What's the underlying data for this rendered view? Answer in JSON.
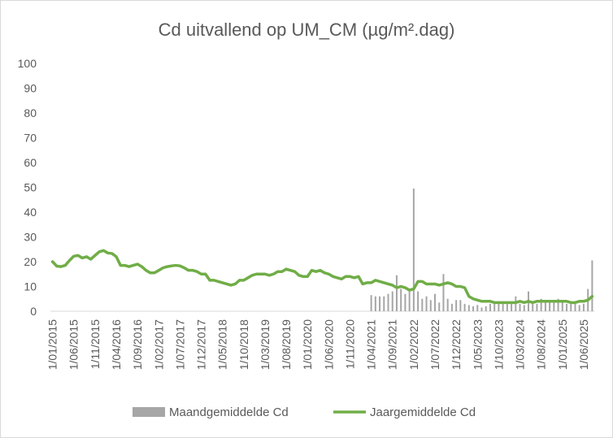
{
  "chart_data": {
    "type": "bar",
    "title": "Cd uitvallend op UM_CM (µg/m².dag)",
    "categories": [
      "1/01/2015",
      null,
      null,
      null,
      null,
      "1/06/2015",
      null,
      null,
      null,
      null,
      "1/11/2015",
      null,
      null,
      null,
      null,
      "1/04/2016",
      null,
      null,
      null,
      null,
      "1/09/2016",
      null,
      null,
      null,
      null,
      "1/02/2017",
      null,
      null,
      null,
      null,
      "1/07/2017",
      null,
      null,
      null,
      null,
      "1/12/2017",
      null,
      null,
      null,
      null,
      "1/05/2018",
      null,
      null,
      null,
      null,
      "1/10/2018",
      null,
      null,
      null,
      null,
      "1/03/2019",
      null,
      null,
      null,
      null,
      "1/08/2019",
      null,
      null,
      null,
      null,
      "1/01/2020",
      null,
      null,
      null,
      null,
      "1/06/2020",
      null,
      null,
      null,
      null,
      "1/11/2020",
      null,
      null,
      null,
      null,
      "1/04/2021",
      null,
      null,
      null,
      null,
      "1/09/2021",
      null,
      null,
      null,
      null,
      "1/02/2022",
      null,
      null,
      null,
      null,
      "1/07/2022",
      null,
      null,
      null,
      null,
      "1/12/2022",
      null,
      null,
      null,
      null,
      "1/05/2023",
      null,
      null,
      null,
      null,
      "1/10/2023",
      null,
      null,
      null,
      null,
      "1/03/2024",
      null,
      null,
      null,
      null,
      "1/08/2024",
      null,
      null,
      null,
      null,
      "1/01/2025",
      null,
      null,
      null,
      null,
      "1/06/2025",
      null,
      null
    ],
    "series": [
      {
        "name": "Maandgemiddelde Cd",
        "type": "bar",
        "color": "#a6a6a6",
        "values": [
          null,
          null,
          null,
          null,
          null,
          null,
          null,
          null,
          null,
          null,
          null,
          null,
          null,
          null,
          null,
          null,
          null,
          null,
          null,
          null,
          null,
          null,
          null,
          null,
          null,
          null,
          null,
          null,
          null,
          null,
          null,
          null,
          null,
          null,
          null,
          null,
          null,
          null,
          null,
          null,
          null,
          null,
          null,
          null,
          null,
          null,
          null,
          null,
          null,
          null,
          null,
          null,
          null,
          null,
          null,
          null,
          null,
          null,
          null,
          null,
          null,
          null,
          null,
          null,
          null,
          null,
          null,
          null,
          null,
          null,
          null,
          null,
          null,
          null,
          null,
          6.5,
          6,
          6,
          6,
          7,
          8,
          14.5,
          9,
          7,
          8,
          49.5,
          8,
          5,
          6,
          4.5,
          7,
          3.5,
          15,
          5,
          3,
          4.5,
          4.5,
          3,
          2.5,
          2,
          2.5,
          1.5,
          2,
          3,
          3,
          4,
          3,
          3.5,
          3,
          6,
          3,
          2.5,
          8,
          3,
          3,
          5,
          4,
          4.5,
          4,
          5,
          3.5,
          3,
          3.5,
          3,
          2.5,
          3,
          9,
          20.5
        ]
      },
      {
        "name": "Jaargemiddelde Cd",
        "type": "line",
        "color": "#70ad47",
        "values": [
          20,
          18.2,
          18,
          18.5,
          20.5,
          22.2,
          22.5,
          21.5,
          22,
          21,
          22.5,
          24,
          24.5,
          23.5,
          23.3,
          22,
          18.5,
          18.5,
          18,
          18.5,
          19,
          18,
          16.5,
          15.5,
          15.5,
          16.5,
          17.5,
          18,
          18.3,
          18.5,
          18.3,
          17.5,
          16.5,
          16.5,
          16,
          15,
          15,
          12.5,
          12.5,
          12,
          11.5,
          11,
          10.5,
          11,
          12.5,
          12.5,
          13.5,
          14.5,
          15,
          15,
          15,
          14.5,
          15,
          16,
          16,
          17,
          16.5,
          16,
          14.5,
          14,
          14,
          16.5,
          16,
          16.5,
          15.5,
          15,
          14,
          13.5,
          13,
          14,
          14,
          13.5,
          14,
          11,
          11.5,
          11.5,
          12.5,
          12,
          11.5,
          11,
          10.5,
          9.5,
          10,
          9.5,
          8.5,
          9,
          12,
          12,
          11,
          11,
          11,
          10.5,
          11,
          11.5,
          11,
          10,
          10,
          9.5,
          6,
          5,
          4.5,
          4,
          4,
          4,
          3.5,
          3.5,
          3.5,
          3.5,
          3.5,
          3.5,
          4,
          3.5,
          4,
          3.5,
          4,
          4,
          4,
          4,
          4,
          4,
          4,
          4,
          3.5,
          3.5,
          4,
          4,
          4.5,
          6
        ]
      }
    ],
    "ylim": [
      0,
      100
    ],
    "yticks": [
      0,
      10,
      20,
      30,
      40,
      50,
      60,
      70,
      80,
      90,
      100
    ],
    "grid": false,
    "legend": "bottom"
  }
}
